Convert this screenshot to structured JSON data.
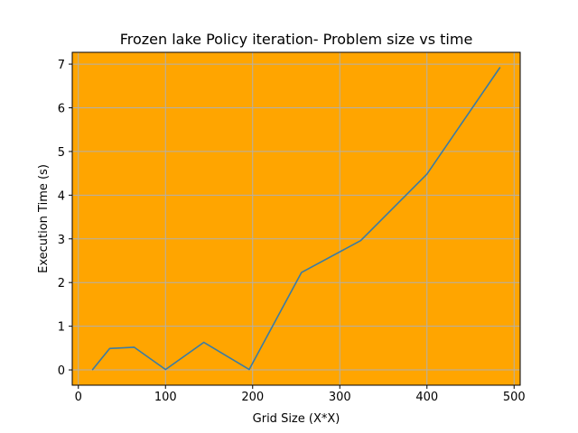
{
  "chart_data": {
    "type": "line",
    "title": "Frozen lake Policy iteration- Problem size vs time",
    "xlabel": "Grid Size (X*X)",
    "ylabel": "Execution Time (s)",
    "xlim": [
      -7,
      507
    ],
    "ylim": [
      -0.35,
      7.27
    ],
    "xticks": [
      0,
      100,
      200,
      300,
      400,
      500
    ],
    "yticks": [
      0,
      1,
      2,
      3,
      4,
      5,
      6,
      7
    ],
    "grid": true,
    "series": [
      {
        "x": [
          16,
          36,
          64,
          100,
          144,
          196,
          256,
          324,
          400,
          484
        ],
        "values": [
          0.0,
          0.49,
          0.52,
          0.01,
          0.63,
          0.01,
          2.23,
          2.96,
          4.48,
          6.93
        ]
      }
    ],
    "colors": {
      "plot_background": "#ffa500",
      "line": "#3a7ca5",
      "grid": "#b0b0b0"
    }
  }
}
